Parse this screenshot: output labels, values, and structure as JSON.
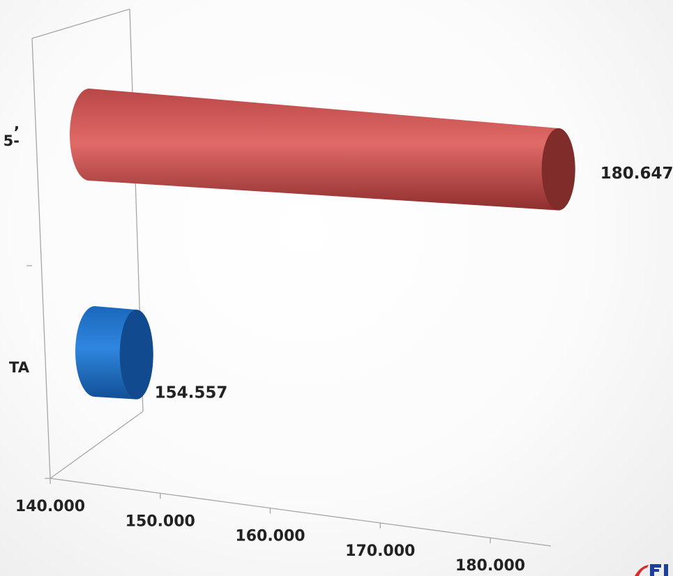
{
  "chart_data": {
    "type": "bar",
    "orientation": "horizontal",
    "style": "3d-cylinder",
    "categories": [
      {
        "label_lines": [
          "TA"
        ],
        "value": 154557,
        "value_label": "154.557",
        "color": "#1e73c8"
      },
      {
        "label_lines": [
          ",",
          "5-"
        ],
        "value": 180647,
        "value_label": "180.647",
        "color": "#d95757"
      }
    ],
    "xlim": [
      140000,
      180000
    ],
    "x_ticks": [
      {
        "value": 140000,
        "label": "140.000"
      },
      {
        "value": 150000,
        "label": "150.000"
      },
      {
        "value": 160000,
        "label": "160.000"
      },
      {
        "value": 170000,
        "label": "170.000"
      },
      {
        "value": 180000,
        "label": "180.000"
      }
    ],
    "grid": false,
    "legend": "none"
  },
  "logo": {
    "name": "brand-logo-partial",
    "colors": [
      "#d92b2b",
      "#1f3f9a"
    ]
  }
}
